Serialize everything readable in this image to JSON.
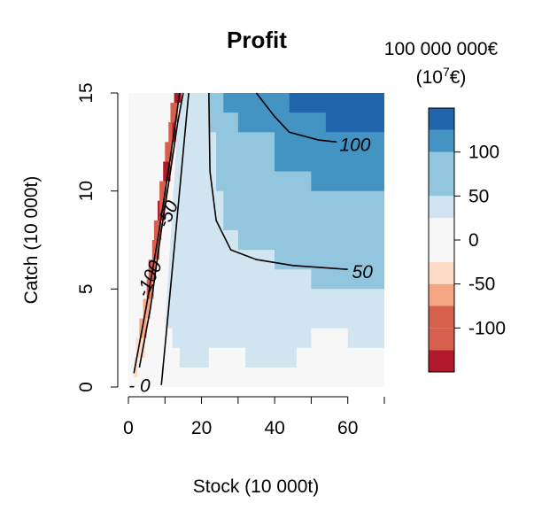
{
  "chart_data": {
    "type": "heatmap",
    "title": "Profit",
    "xlabel": "Stock (10   000t)",
    "ylabel": "Catch (10   000t)",
    "xlim": [
      0,
      70
    ],
    "ylim": [
      0,
      15
    ],
    "x_ticks": [
      "0",
      "20",
      "40",
      "60"
    ],
    "y_ticks": [
      "0",
      "5",
      "10",
      "15"
    ],
    "legend": {
      "title_line1": "100 000 000€",
      "title_line2_base": "(10",
      "title_line2_sup": "7",
      "title_line2_end": "€)",
      "position": "right",
      "bands": [
        {
          "lo": -150,
          "hi": -125,
          "color": "#b2182b"
        },
        {
          "lo": -125,
          "hi": -100,
          "color": "#d6604d"
        },
        {
          "lo": -100,
          "hi": -75,
          "color": "#d6604d"
        },
        {
          "lo": -75,
          "hi": -50,
          "color": "#f4a582"
        },
        {
          "lo": -50,
          "hi": -25,
          "color": "#fddbc7"
        },
        {
          "lo": -25,
          "hi": 25,
          "color": "#f7f7f7"
        },
        {
          "lo": 25,
          "hi": 50,
          "color": "#d1e5f0"
        },
        {
          "lo": 50,
          "hi": 75,
          "color": "#92c5de"
        },
        {
          "lo": 75,
          "hi": 100,
          "color": "#92c5de"
        },
        {
          "lo": 100,
          "hi": 125,
          "color": "#4393c3"
        },
        {
          "lo": 125,
          "hi": 150,
          "color": "#2166ac"
        }
      ],
      "ticks": [
        {
          "value": 100,
          "label": "100"
        },
        {
          "value": 50,
          "label": "50"
        },
        {
          "value": 0,
          "label": "0"
        },
        {
          "value": -50,
          "label": "-50"
        },
        {
          "value": -100,
          "label": "-100"
        }
      ]
    },
    "regions": [
      {
        "level": "0_25",
        "color": "#d1e5f0",
        "polygon": [
          [
            10,
            3
          ],
          [
            14,
            15
          ],
          [
            70,
            15
          ],
          [
            70,
            2
          ],
          [
            60,
            2
          ],
          [
            60,
            3
          ],
          [
            50,
            3
          ],
          [
            50,
            2
          ],
          [
            46,
            2
          ],
          [
            46,
            1
          ],
          [
            32,
            1
          ],
          [
            32,
            2
          ],
          [
            22,
            2
          ],
          [
            22,
            1
          ],
          [
            14,
            1
          ],
          [
            14,
            2
          ],
          [
            12,
            2
          ],
          [
            12,
            3
          ]
        ]
      },
      {
        "level": "25_50",
        "color": "#92c5de",
        "polygon": [
          [
            22,
            15
          ],
          [
            70,
            15
          ],
          [
            70,
            5
          ],
          [
            50,
            5
          ],
          [
            50,
            6
          ],
          [
            40,
            6
          ],
          [
            40,
            7
          ],
          [
            30,
            7
          ],
          [
            30,
            8
          ],
          [
            26,
            8
          ],
          [
            26,
            10
          ],
          [
            24,
            10
          ],
          [
            24,
            13
          ],
          [
            22,
            13
          ]
        ]
      },
      {
        "level": "50_100",
        "color": "#4393c3",
        "polygon": [
          [
            26,
            15
          ],
          [
            70,
            15
          ],
          [
            70,
            10
          ],
          [
            50,
            10
          ],
          [
            50,
            11
          ],
          [
            40,
            11
          ],
          [
            40,
            13
          ],
          [
            30,
            13
          ],
          [
            30,
            14
          ],
          [
            26,
            14
          ]
        ]
      },
      {
        "level": "100_150",
        "color": "#2166ac",
        "polygon": [
          [
            44,
            15
          ],
          [
            70,
            15
          ],
          [
            70,
            13
          ],
          [
            54,
            13
          ],
          [
            54,
            14
          ],
          [
            44,
            14
          ]
        ]
      }
    ],
    "neg_cells": [
      {
        "x": 1.5,
        "y": 0.5,
        "w": 1,
        "h": 1,
        "color": "#fddbc7"
      },
      {
        "x": 2,
        "y": 1.5,
        "w": 2,
        "h": 1,
        "color": "#fddbc7"
      },
      {
        "x": 3,
        "y": 2.5,
        "w": 2,
        "h": 1,
        "color": "#f4a582"
      },
      {
        "x": 4,
        "y": 3.5,
        "w": 2,
        "h": 1,
        "color": "#f4a582"
      },
      {
        "x": 5,
        "y": 4.5,
        "w": 2,
        "h": 1,
        "color": "#d6604d"
      },
      {
        "x": 5.5,
        "y": 5.5,
        "w": 2,
        "h": 1,
        "color": "#d6604d"
      },
      {
        "x": 6.5,
        "y": 6.5,
        "w": 2,
        "h": 1,
        "color": "#d6604d"
      },
      {
        "x": 7,
        "y": 7.5,
        "w": 2,
        "h": 1,
        "color": "#d6604d"
      },
      {
        "x": 8,
        "y": 8.5,
        "w": 2,
        "h": 1,
        "color": "#b2182b"
      },
      {
        "x": 8.5,
        "y": 9.5,
        "w": 2,
        "h": 1,
        "color": "#d6604d"
      },
      {
        "x": 9.5,
        "y": 10.5,
        "w": 2,
        "h": 1,
        "color": "#b2182b"
      },
      {
        "x": 10,
        "y": 11.5,
        "w": 2,
        "h": 1,
        "color": "#d6604d"
      },
      {
        "x": 11,
        "y": 12.5,
        "w": 2,
        "h": 1,
        "color": "#b2182b"
      },
      {
        "x": 11.5,
        "y": 13.5,
        "w": 2,
        "h": 1,
        "color": "#d6604d"
      },
      {
        "x": 12.5,
        "y": 14.5,
        "w": 2,
        "h": 0.5,
        "color": "#b2182b"
      },
      {
        "x": 3.5,
        "y": 1.5,
        "w": 1,
        "h": 1,
        "color": "#fddbc7"
      },
      {
        "x": 6,
        "y": 4.5,
        "w": 1,
        "h": 1,
        "color": "#f4a582"
      },
      {
        "x": 8.5,
        "y": 8.5,
        "w": 1,
        "h": 1,
        "color": "#d6604d"
      },
      {
        "x": 11,
        "y": 12.5,
        "w": 1,
        "h": 1,
        "color": "#d6604d"
      }
    ],
    "contours": [
      {
        "level": "-100",
        "points": [
          [
            1.5,
            0.7
          ],
          [
            3,
            2.2
          ],
          [
            5,
            4.2
          ],
          [
            8,
            7.5
          ],
          [
            10.5,
            10.5
          ],
          [
            12.5,
            13
          ],
          [
            14,
            15
          ]
        ]
      },
      {
        "level": "-50",
        "points": [
          [
            3,
            1
          ],
          [
            6,
            4
          ],
          [
            9,
            8
          ],
          [
            11.5,
            11
          ],
          [
            13.5,
            13.5
          ],
          [
            15,
            15
          ]
        ]
      },
      {
        "level": "0",
        "points": [
          [
            9,
            0.1
          ],
          [
            11,
            4
          ],
          [
            13,
            8
          ],
          [
            15,
            12
          ],
          [
            16.5,
            15
          ]
        ]
      },
      {
        "level": "50",
        "points": [
          [
            22,
            15
          ],
          [
            22.3,
            11
          ],
          [
            24,
            8.5
          ],
          [
            28,
            7
          ],
          [
            35,
            6.5
          ],
          [
            45,
            6.2
          ],
          [
            60,
            6
          ]
        ]
      },
      {
        "level": "100",
        "points": [
          [
            35,
            15
          ],
          [
            40,
            13.8
          ],
          [
            44,
            13
          ],
          [
            52,
            12.6
          ],
          [
            57,
            12.5
          ]
        ]
      }
    ],
    "contour_labels": [
      {
        "text": "-100",
        "x": 6,
        "y": 5.5,
        "angle": -66
      },
      {
        "text": "-50",
        "x": 11,
        "y": 8.8,
        "angle": -66
      },
      {
        "text": "- 0",
        "x": 3,
        "y": 0,
        "angle": 0
      },
      {
        "text": "50",
        "x": 64,
        "y": 5.8,
        "angle": 0
      },
      {
        "text": "100",
        "x": 62,
        "y": 12.3,
        "angle": 0
      }
    ]
  }
}
